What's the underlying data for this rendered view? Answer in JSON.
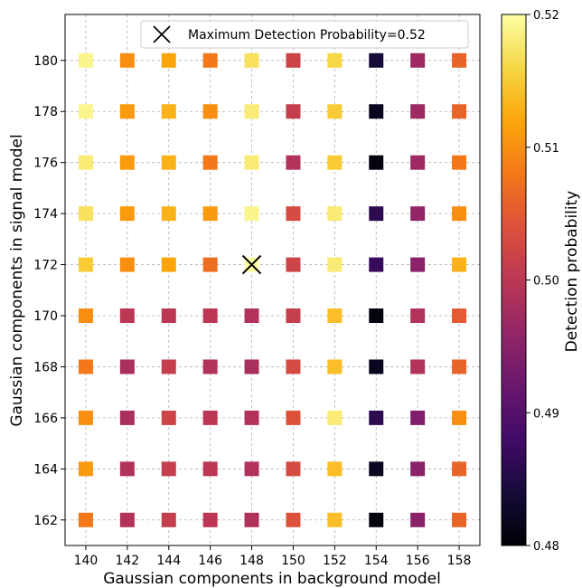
{
  "chart_data": {
    "type": "scatter",
    "title": "",
    "xlabel": "Gaussian components in background model",
    "ylabel": "Gaussian components in signal model",
    "colorbar_label": "Detection probability",
    "colormap": "inferno",
    "marker": "square",
    "grid": true,
    "legend_placement": "top-right",
    "x_ticks": [
      140,
      142,
      144,
      146,
      148,
      150,
      152,
      154,
      156,
      158
    ],
    "y_ticks": [
      162,
      164,
      166,
      168,
      170,
      172,
      174,
      176,
      178,
      180
    ],
    "xlim": [
      139.0,
      159.0
    ],
    "ylim": [
      161.0,
      181.8
    ],
    "color_range": [
      0.48,
      0.52
    ],
    "colorbar_ticks": [
      0.48,
      0.49,
      0.5,
      0.51,
      0.52
    ],
    "colorbar_tick_labels": [
      "0.48",
      "0.49",
      "0.50",
      "0.51",
      "0.52"
    ],
    "x": [
      140,
      142,
      144,
      146,
      148,
      150,
      152,
      154,
      156,
      158
    ],
    "y": [
      162,
      164,
      166,
      168,
      170,
      172,
      174,
      176,
      178,
      180
    ],
    "z": [
      [
        0.508,
        0.499,
        0.501,
        0.5,
        0.499,
        0.504,
        0.514,
        0.481,
        0.495,
        0.506
      ],
      [
        0.511,
        0.499,
        0.501,
        0.5,
        0.499,
        0.503,
        0.514,
        0.482,
        0.495,
        0.506
      ],
      [
        0.51,
        0.498,
        0.502,
        0.5,
        0.499,
        0.504,
        0.518,
        0.486,
        0.494,
        0.51
      ],
      [
        0.508,
        0.498,
        0.501,
        0.499,
        0.498,
        0.503,
        0.514,
        0.482,
        0.499,
        0.506
      ],
      [
        0.51,
        0.5,
        0.5,
        0.5,
        0.499,
        0.501,
        0.514,
        0.481,
        0.499,
        0.505
      ],
      [
        0.515,
        0.51,
        0.512,
        0.507,
        0.52,
        0.502,
        0.518,
        0.487,
        0.495,
        0.513
      ],
      [
        0.517,
        0.511,
        0.513,
        0.511,
        0.519,
        0.503,
        0.518,
        0.486,
        0.496,
        0.51
      ],
      [
        0.518,
        0.511,
        0.513,
        0.508,
        0.518,
        0.499,
        0.515,
        0.481,
        0.497,
        0.508
      ],
      [
        0.519,
        0.511,
        0.513,
        0.51,
        0.518,
        0.501,
        0.515,
        0.482,
        0.497,
        0.506
      ],
      [
        0.519,
        0.51,
        0.512,
        0.508,
        0.517,
        0.502,
        0.516,
        0.484,
        0.497,
        0.506
      ]
    ],
    "highlight": {
      "x": 148,
      "y": 172,
      "marker": "x",
      "label": "Maximum Detection Probability=0.52"
    }
  }
}
